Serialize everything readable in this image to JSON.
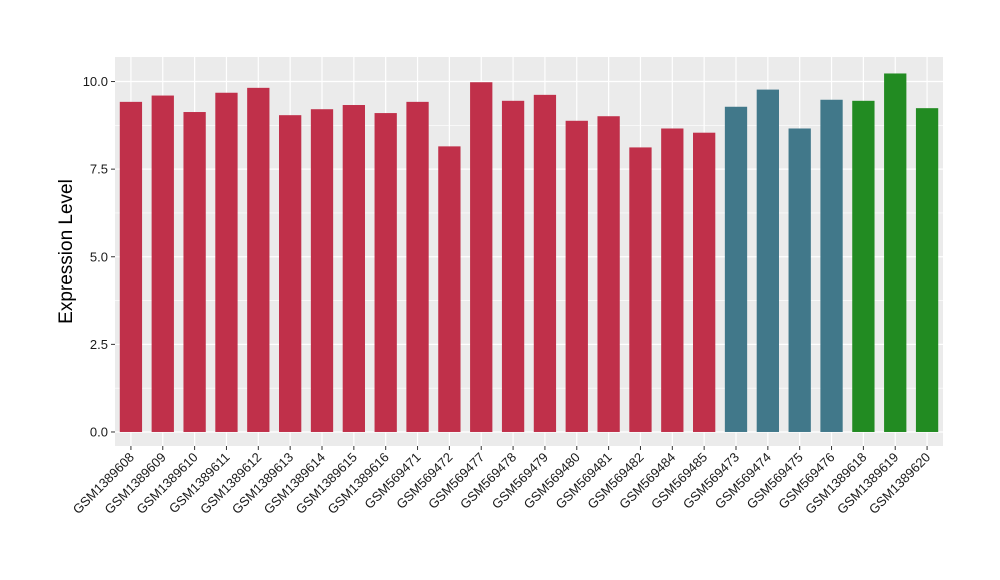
{
  "chart_data": {
    "type": "bar",
    "ylabel": "Expression Level",
    "xlabel": "",
    "ylim": [
      -0.4,
      10.7
    ],
    "yticks": [
      0.0,
      2.5,
      5.0,
      7.5,
      10.0
    ],
    "ytick_labels": [
      "0.0",
      "2.5",
      "5.0",
      "7.5",
      "10.0"
    ],
    "grid": true,
    "legend": "none",
    "background": "#EBEBEB",
    "gridline_color": "#FFFFFF",
    "categories": [
      "GSM1389608",
      "GSM1389609",
      "GSM1389610",
      "GSM1389611",
      "GSM1389612",
      "GSM1389613",
      "GSM1389614",
      "GSM1389615",
      "GSM1389616",
      "GSM569471",
      "GSM569472",
      "GSM569477",
      "GSM569478",
      "GSM569479",
      "GSM569480",
      "GSM569481",
      "GSM569482",
      "GSM569484",
      "GSM569485",
      "GSM569473",
      "GSM569474",
      "GSM569475",
      "GSM569476",
      "GSM1389618",
      "GSM1389619",
      "GSM1389620"
    ],
    "values": [
      9.42,
      9.6,
      9.13,
      9.68,
      9.82,
      9.04,
      9.21,
      9.33,
      9.1,
      9.42,
      8.15,
      9.98,
      9.45,
      9.62,
      8.88,
      9.01,
      8.12,
      8.66,
      8.54,
      9.28,
      9.77,
      8.66,
      9.48,
      9.45,
      10.23,
      9.24
    ],
    "bar_colors": [
      "#C0304A",
      "#C0304A",
      "#C0304A",
      "#C0304A",
      "#C0304A",
      "#C0304A",
      "#C0304A",
      "#C0304A",
      "#C0304A",
      "#C0304A",
      "#C0304A",
      "#C0304A",
      "#C0304A",
      "#C0304A",
      "#C0304A",
      "#C0304A",
      "#C0304A",
      "#C0304A",
      "#C0304A",
      "#41788A",
      "#41788A",
      "#41788A",
      "#41788A",
      "#228B22",
      "#228B22",
      "#228B22"
    ]
  }
}
